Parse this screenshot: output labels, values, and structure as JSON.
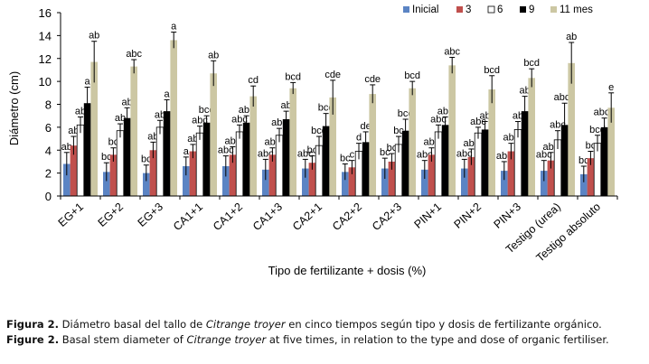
{
  "chart_data": {
    "type": "bar",
    "title": "",
    "xlabel": "Tipo de fertilizante  + dosis (%)",
    "ylabel": "Diámetro  (cm)",
    "ylim": [
      0,
      16
    ],
    "yticks": [
      0,
      2,
      4,
      6,
      8,
      10,
      12,
      14,
      16
    ],
    "grid": false,
    "legend_position": "top-right",
    "categories": [
      "EG+1",
      "EG+2",
      "EG+3",
      "CA1+1",
      "CA1+2",
      "CA1+3",
      "CA2+1",
      "CA2+2",
      "CA2+3",
      "PIN+1",
      "PIN+2",
      "PIN+3",
      "Testigo (urea)",
      "Testigo absoluto"
    ],
    "series": [
      {
        "name": "Inicial",
        "color": "#5b84c4",
        "values": [
          2.8,
          2.1,
          2.0,
          2.6,
          2.6,
          2.3,
          2.4,
          2.1,
          2.4,
          2.3,
          2.4,
          2.2,
          2.2,
          1.9
        ],
        "errors": [
          1.0,
          0.8,
          0.7,
          0.8,
          0.9,
          0.9,
          0.8,
          0.7,
          0.9,
          0.8,
          0.8,
          0.8,
          0.9,
          0.7
        ],
        "labels": [
          "ab",
          "bc",
          "bc",
          "a",
          "abc",
          "abc",
          "abc",
          "bc",
          "bc",
          "abc",
          "abc",
          "abc",
          "abc",
          "bc"
        ]
      },
      {
        "name": "3",
        "color": "#c0504d",
        "values": [
          4.4,
          3.6,
          4.0,
          3.9,
          3.6,
          3.6,
          2.9,
          2.5,
          3.0,
          3.6,
          3.4,
          3.9,
          3.1,
          3.3
        ],
        "errors": [
          0.8,
          0.6,
          0.7,
          0.6,
          0.7,
          0.6,
          0.6,
          0.6,
          0.7,
          0.6,
          0.7,
          0.7,
          0.7,
          0.6
        ],
        "labels": [
          "ab",
          "bc",
          "ab",
          "ab",
          "abc",
          "abc",
          "bc",
          "c",
          "bc",
          "abc",
          "abc",
          "abc",
          "abc",
          "bc"
        ]
      },
      {
        "name": "6",
        "color": "#ffffff",
        "values": [
          6.2,
          5.7,
          6.0,
          5.5,
          5.6,
          5.3,
          4.4,
          3.9,
          4.5,
          5.6,
          5.5,
          5.8,
          4.9,
          4.6
        ],
        "errors": [
          0.7,
          0.6,
          0.6,
          0.6,
          0.6,
          0.6,
          0.8,
          0.7,
          0.7,
          0.6,
          0.5,
          0.7,
          0.8,
          0.7
        ],
        "labels": [
          "ab",
          "ab",
          "ab",
          "abc",
          "abc",
          "abc",
          "bcd",
          "d",
          "bc",
          "abc",
          "abc",
          "ab",
          "abc",
          "bcd"
        ]
      },
      {
        "name": "9",
        "color": "#000000",
        "values": [
          8.1,
          6.8,
          7.4,
          6.4,
          6.4,
          6.7,
          6.1,
          4.7,
          5.7,
          6.2,
          5.8,
          7.4,
          6.2,
          6.0
        ],
        "errors": [
          1.4,
          0.9,
          1.0,
          0.6,
          0.6,
          0.7,
          1.1,
          0.9,
          1.0,
          0.7,
          0.7,
          1.3,
          1.9,
          0.8
        ],
        "labels": [
          "a",
          "ab",
          "a",
          "bcd",
          "abc",
          "ab",
          "bcd",
          "de",
          "bcd",
          "abc",
          "ab",
          "ab",
          "abcd",
          "abcd"
        ]
      },
      {
        "name": "11 mes",
        "color": "#ccc7a3",
        "values": [
          11.7,
          11.3,
          13.6,
          10.7,
          8.7,
          9.4,
          8.6,
          8.9,
          9.4,
          11.4,
          9.3,
          10.3,
          11.6,
          7.7
        ],
        "errors": [
          1.8,
          0.6,
          0.7,
          1.1,
          0.9,
          0.5,
          1.5,
          0.8,
          0.6,
          0.7,
          1.2,
          0.8,
          1.8,
          1.3
        ],
        "labels": [
          "ab",
          "abc",
          "a",
          "ab",
          "cd",
          "bcd",
          "cde",
          "cde",
          "bcd",
          "abc",
          "bcd",
          "bcd",
          "ab",
          "e"
        ]
      }
    ]
  },
  "caption": {
    "es_label": "Figura 2.",
    "es_text_1": " Diámetro basal del tallo de ",
    "es_species": "Citrange troyer",
    "es_text_2": " en cinco tiempos según tipo y dosis de fertilizante orgánico.",
    "en_label": "Figure 2.",
    "en_text_1": "  Basal stem diameter of ",
    "en_species": "Citrange troyer",
    "en_text_2": " at five times, in relation to the type and dose of organic fertiliser."
  }
}
